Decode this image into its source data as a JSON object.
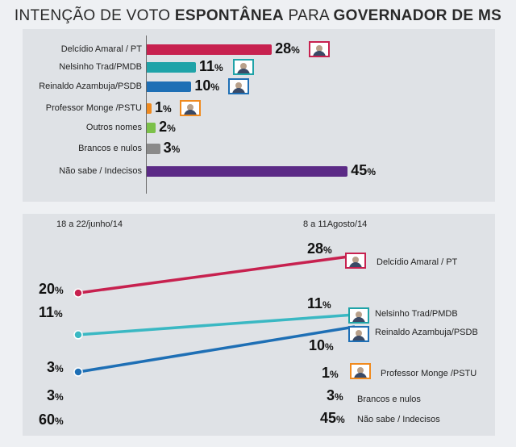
{
  "header": {
    "title_pre": "INTENÇÃO DE VOTO ",
    "title_bold1": "ESPONTÂNEA",
    "title_mid": " PARA ",
    "title_bold2": "GOVERNADOR DE MS"
  },
  "chart_data": [
    {
      "type": "bar",
      "categories": [
        "Delcídio Amaral / PT",
        "Nelsinho Trad/PMDB",
        "Reinaldo Azambuja/PSDB",
        "Professor Monge /PSTU",
        "Outros nomes",
        "Brancos e nulos",
        "Não sabe / Indecisos"
      ],
      "values": [
        28,
        11,
        10,
        1,
        2,
        3,
        45
      ],
      "value_labels": [
        "28",
        "11",
        "10",
        "1",
        "2",
        "3",
        "45"
      ],
      "unit": "%",
      "colors": [
        "#c7214f",
        "#1fa3a8",
        "#1e6fb5",
        "#f08a1e",
        "#7cc14a",
        "#8a8a8a",
        "#5b2a86"
      ]
    },
    {
      "type": "line",
      "x": [
        "18 a 22/junho/14",
        "8 a 11Agosto/14"
      ],
      "series": [
        {
          "name": "Delcídio Amaral / PT",
          "values": [
            20,
            28
          ],
          "start_label": "20",
          "end_label": "28",
          "color": "#c7214f"
        },
        {
          "name": "Nelsinho Trad/PMDB",
          "values": [
            11,
            11
          ],
          "start_label": "11",
          "end_label": "11",
          "color": "#3ab8c3"
        },
        {
          "name": "Reinaldo Azambuja/PSDB",
          "values": [
            3,
            10
          ],
          "start_label": "3",
          "end_label": "10",
          "color": "#1e6fb5"
        },
        {
          "name": "Professor Monge /PSTU",
          "values": [
            null,
            1
          ],
          "start_label": "",
          "end_label": "1"
        },
        {
          "name": "Brancos e nulos",
          "values": [
            3,
            3
          ],
          "start_label": "3",
          "end_label": "3"
        },
        {
          "name": "Não sabe / Indecisos",
          "values": [
            60,
            45
          ],
          "start_label": "60",
          "end_label": "45"
        }
      ],
      "unit": "%"
    }
  ]
}
